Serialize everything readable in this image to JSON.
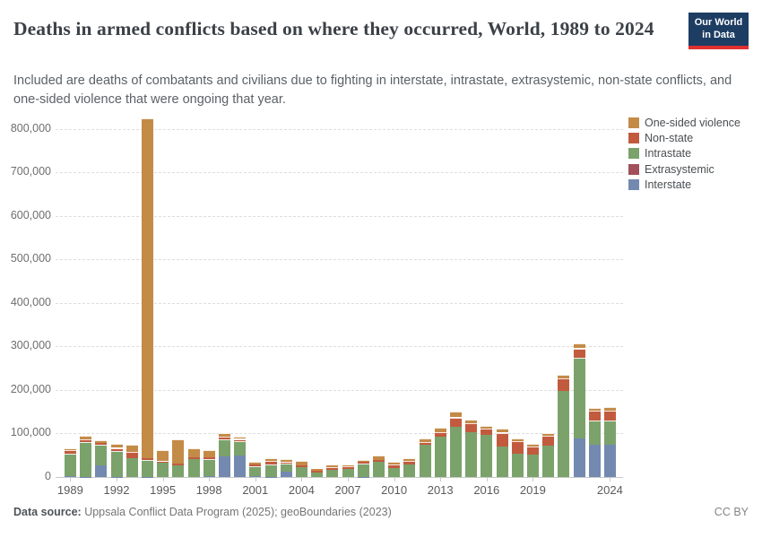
{
  "header": {
    "title": "Deaths in armed conflicts based on where they occurred, World, 1989 to 2024",
    "subtitle": "Included are deaths of combatants and civilians due to fighting in interstate, intrastate, extrasystemic, non-state conflicts, and one-sided violence that were ongoing that year.",
    "logo": {
      "line1": "Our World",
      "line2": "in Data"
    }
  },
  "chart_data": {
    "type": "bar",
    "stacked": true,
    "title": "Deaths in armed conflicts based on where they occurred, World, 1989 to 2024",
    "xlabel": "",
    "ylabel": "",
    "ylim": [
      0,
      800000
    ],
    "grid": "horizontal-dashed",
    "legend_position": "right",
    "x": [
      1989,
      1990,
      1991,
      1992,
      1993,
      1994,
      1995,
      1996,
      1997,
      1998,
      1999,
      2000,
      2001,
      2002,
      2003,
      2004,
      2005,
      2006,
      2007,
      2008,
      2009,
      2010,
      2011,
      2012,
      2013,
      2014,
      2015,
      2016,
      2017,
      2018,
      2019,
      2020,
      2021,
      2022,
      2023,
      2024
    ],
    "xtick_years": [
      1989,
      1992,
      1995,
      1998,
      2001,
      2004,
      2007,
      2010,
      2013,
      2016,
      2019,
      2024
    ],
    "ytick_values": [
      0,
      100000,
      200000,
      300000,
      400000,
      500000,
      600000,
      700000,
      800000
    ],
    "ytick_labels": [
      "0",
      "100,000",
      "200,000",
      "300,000",
      "400,000",
      "500,000",
      "600,000",
      "700,000",
      "800,000"
    ],
    "series": [
      {
        "name": "Interstate",
        "color": "#7389b0",
        "values": [
          1500,
          500,
          26000,
          500,
          0,
          500,
          0,
          0,
          0,
          1500,
          48000,
          49500,
          2000,
          500,
          12500,
          0,
          0,
          0,
          0,
          500,
          0,
          0,
          0,
          0,
          0,
          0,
          0,
          0,
          0,
          0,
          0,
          0,
          0,
          89500,
          73500,
          74000
        ]
      },
      {
        "name": "Extrasystemic",
        "color": "#a2505a",
        "values": [
          0,
          0,
          0,
          0,
          0,
          0,
          0,
          0,
          0,
          0,
          0,
          0,
          0,
          0,
          0,
          0,
          0,
          0,
          0,
          0,
          0,
          0,
          0,
          0,
          0,
          0,
          0,
          0,
          0,
          0,
          0,
          0,
          0,
          0,
          0,
          0
        ]
      },
      {
        "name": "Intrastate",
        "color": "#7ba26b",
        "values": [
          52000,
          80000,
          48500,
          58500,
          44000,
          39000,
          33000,
          27000,
          40500,
          40500,
          39000,
          33000,
          22000,
          27500,
          19000,
          22000,
          11000,
          16000,
          18500,
          30500,
          35500,
          21500,
          29000,
          75000,
          92500,
          116500,
          103000,
          97500,
          71000,
          53500,
          51500,
          72000,
          198500,
          185500,
          57000,
          55000
        ]
      },
      {
        "name": "Non-state",
        "color": "#c25b3e",
        "values": [
          7500,
          5500,
          3500,
          8000,
          14500,
          3500,
          3000,
          3000,
          4000,
          4000,
          5500,
          5000,
          4000,
          9000,
          2500,
          4000,
          4000,
          7000,
          5500,
          3500,
          3500,
          8000,
          7500,
          6000,
          10500,
          20500,
          20500,
          14500,
          31000,
          29000,
          19000,
          22000,
          28000,
          20500,
          22500,
          24000
        ]
      },
      {
        "name": "One-sided violence",
        "color": "#c48b47",
        "values": [
          5500,
          9000,
          7500,
          9000,
          15500,
          782000,
          25000,
          57000,
          20500,
          15000,
          8000,
          5000,
          7500,
          7000,
          7000,
          10500,
          3500,
          3500,
          3500,
          5000,
          10500,
          5000,
          6000,
          8000,
          10500,
          12500,
          8000,
          6000,
          10000,
          7000,
          5500,
          7500,
          8500,
          12000,
          6500,
          7000
        ]
      }
    ]
  },
  "footer": {
    "datasource_label": "Data source:",
    "datasource_text": " Uppsala Conflict Data Program (2025); geoBoundaries (2023)",
    "license": "CC BY"
  }
}
